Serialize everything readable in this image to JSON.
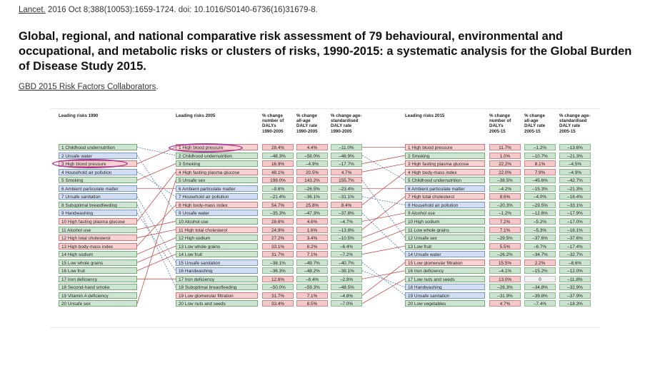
{
  "citation": {
    "journal": "Lancet.",
    "details": " 2016 Oct 8;388(10053):1659-1724. doi: 10.1016/S0140-6736(16)31679-8."
  },
  "article": {
    "title": "Global, regional, and national comparative risk assessment of 79 behavioural, environmental and occupational, and metabolic risks or clusters of risks, 1990-2015: a systematic analysis for the Global Burden of Disease Study 2015.",
    "authors": "GBD 2015 Risk Factors Collaborators",
    "authors_suffix": "."
  },
  "figure": {
    "headers": {
      "leading_1990": "Leading risks 1990",
      "leading_2005": "Leading risks 2005",
      "leading_2015": "Leading risks 2015",
      "h2005_dalys": "% change\nnumber of\nDALYs\n1990-2005",
      "h2005_allage": "% change\nall-age\nDALY rate\n1990-2005",
      "h2005_agestd": "% change age-\nstandardised\nDALY rate\n1990-2005",
      "h2015_dalys": "% change\nnumber of\nDALYs\n2005-15",
      "h2015_allage": "% change\nall-age\nDALY rate\n2005-15",
      "h2015_agestd": "% change age-\nstandardised\nDALY rate\n2005-15"
    },
    "risks_1990": [
      {
        "label": "1 Childhood undernutrition",
        "cat": "behavioural"
      },
      {
        "label": "2 Unsafe water",
        "cat": "environmental"
      },
      {
        "label": "3 High blood pressure",
        "cat": "metabolic"
      },
      {
        "label": "4 Household air pollution",
        "cat": "environmental"
      },
      {
        "label": "5 Smoking",
        "cat": "behavioural"
      },
      {
        "label": "6 Ambient particulate matter",
        "cat": "environmental"
      },
      {
        "label": "7 Unsafe sanitation",
        "cat": "environmental"
      },
      {
        "label": "8 Suboptimal breastfeeding",
        "cat": "behavioural"
      },
      {
        "label": "9 Handwashing",
        "cat": "environmental"
      },
      {
        "label": "10 High fasting plasma glucose",
        "cat": "metabolic"
      },
      {
        "label": "11 Alcohol use",
        "cat": "behavioural"
      },
      {
        "label": "12 High total cholesterol",
        "cat": "metabolic"
      },
      {
        "label": "13 High body-mass index",
        "cat": "metabolic"
      },
      {
        "label": "14 High sodium",
        "cat": "behavioural"
      },
      {
        "label": "15 Low whole grains",
        "cat": "behavioural"
      },
      {
        "label": "16 Low fruit",
        "cat": "behavioural"
      },
      {
        "label": "17 Iron deficiency",
        "cat": "behavioural"
      },
      {
        "label": "18 Second-hand smoke",
        "cat": "behavioural"
      },
      {
        "label": "19 Vitamin A deficiency",
        "cat": "behavioural"
      },
      {
        "label": "20 Unsafe sex",
        "cat": "behavioural"
      }
    ],
    "risks_2005": [
      {
        "label": "1 High blood pressure",
        "cat": "metabolic",
        "dalys": "28.4%",
        "allage": "4.4%",
        "agestd": "–11.0%"
      },
      {
        "label": "2 Childhood undernutrition",
        "cat": "behavioural",
        "dalys": "–48.3%",
        "allage": "–58.0%",
        "agestd": "–46.9%"
      },
      {
        "label": "3 Smoking",
        "cat": "behavioural",
        "dalys": "16.9%",
        "allage": "–4.9%",
        "agestd": "–17.7%"
      },
      {
        "label": "4 High fasting plasma glucose",
        "cat": "metabolic",
        "dalys": "48.1%",
        "allage": "20.5%",
        "agestd": "4.7%"
      },
      {
        "label": "5 Unsafe sex",
        "cat": "behavioural",
        "dalys": "199.0%",
        "allage": "143.2%",
        "agestd": "155.7%"
      },
      {
        "label": "6 Ambient particulate matter",
        "cat": "environmental",
        "dalys": "–9.6%",
        "allage": "–26.5%",
        "agestd": "–23.4%"
      },
      {
        "label": "7 Household air pollution",
        "cat": "environmental",
        "dalys": "–21.4%",
        "allage": "–36.1%",
        "agestd": "–31.1%"
      },
      {
        "label": "8 High body-mass index",
        "cat": "metabolic",
        "dalys": "54.7%",
        "allage": "25.8%",
        "agestd": "8.4%"
      },
      {
        "label": "9 Unsafe water",
        "cat": "environmental",
        "dalys": "–35.3%",
        "allage": "–47.3%",
        "agestd": "–37.8%"
      },
      {
        "label": "10 Alcohol use",
        "cat": "behavioural",
        "dalys": "28.6%",
        "allage": "4.6%",
        "agestd": "–4.7%"
      },
      {
        "label": "11 High total cholesterol",
        "cat": "metabolic",
        "dalys": "24.9%",
        "allage": "1.6%",
        "agestd": "–13.8%"
      },
      {
        "label": "12 High sodium",
        "cat": "behavioural",
        "dalys": "27.2%",
        "allage": "3.4%",
        "agestd": "–10.5%"
      },
      {
        "label": "13 Low whole grains",
        "cat": "behavioural",
        "dalys": "33.1%",
        "allage": "8.2%",
        "agestd": "–6.4%"
      },
      {
        "label": "14 Low fruit",
        "cat": "behavioural",
        "dalys": "31.7%",
        "allage": "7.1%",
        "agestd": "–7.2%"
      },
      {
        "label": "15 Unsafe sanitation",
        "cat": "environmental",
        "dalys": "–38.1%",
        "allage": "–49.7%",
        "agestd": "–40.7%"
      },
      {
        "label": "16 Handwashing",
        "cat": "environmental",
        "dalys": "–36.3%",
        "allage": "–48.2%",
        "agestd": "–38.1%"
      },
      {
        "label": "17 Iron deficiency",
        "cat": "behavioural",
        "dalys": "12.6%",
        "allage": "–8.4%",
        "agestd": "–2.8%"
      },
      {
        "label": "18 Suboptimal breastfeeding",
        "cat": "behavioural",
        "dalys": "–50.0%",
        "allage": "–59.3%",
        "agestd": "–48.5%"
      },
      {
        "label": "19 Low glomerular filtration",
        "cat": "metabolic",
        "dalys": "31.7%",
        "allage": "7.1%",
        "agestd": "–4.8%"
      },
      {
        "label": "20 Low nuts and seeds",
        "cat": "behavioural",
        "dalys": "33.4%",
        "allage": "8.5%",
        "agestd": "–7.0%"
      }
    ],
    "risks_2015": [
      {
        "label": "1 High blood pressure",
        "cat": "metabolic",
        "dalys": "11.7%",
        "allage": "–1.2%",
        "agestd": "–13.6%"
      },
      {
        "label": "2 Smoking",
        "cat": "behavioural",
        "dalys": "1.0%",
        "allage": "–10.7%",
        "agestd": "–21.3%"
      },
      {
        "label": "3 High fasting plasma glucose",
        "cat": "metabolic",
        "dalys": "22.2%",
        "allage": "8.1%",
        "agestd": "–4.5%"
      },
      {
        "label": "4 High body-mass index",
        "cat": "metabolic",
        "dalys": "22.0%",
        "allage": "7.9%",
        "agestd": "–4.9%"
      },
      {
        "label": "5 Childhood undernutrition",
        "cat": "behavioural",
        "dalys": "–38.5%",
        "allage": "–45.6%",
        "agestd": "–42.7%"
      },
      {
        "label": "6 Ambient particulate matter",
        "cat": "environmental",
        "dalys": "–4.2%",
        "allage": "–15.3%",
        "agestd": "–21.3%"
      },
      {
        "label": "7 High total cholesterol",
        "cat": "metabolic",
        "dalys": "8.6%",
        "allage": "–4.0%",
        "agestd": "–16.4%"
      },
      {
        "label": "8 Household air pollution",
        "cat": "environmental",
        "dalys": "–20.3%",
        "allage": "–29.5%",
        "agestd": "–33.1%"
      },
      {
        "label": "9 Alcohol use",
        "cat": "behavioural",
        "dalys": "–1.2%",
        "allage": "–12.6%",
        "agestd": "–17.9%"
      },
      {
        "label": "10 High sodium",
        "cat": "behavioural",
        "dalys": "7.2%",
        "allage": "–5.2%",
        "agestd": "–17.0%"
      },
      {
        "label": "11 Low whole grains",
        "cat": "behavioural",
        "dalys": "7.1%",
        "allage": "–5.3%",
        "agestd": "–16.1%"
      },
      {
        "label": "12 Unsafe sex",
        "cat": "behavioural",
        "dalys": "–29.5%",
        "allage": "–37.6%",
        "agestd": "–37.6%"
      },
      {
        "label": "13 Low fruit",
        "cat": "behavioural",
        "dalys": "5.5%",
        "allage": "–6.7%",
        "agestd": "–17.4%"
      },
      {
        "label": "14 Unsafe water",
        "cat": "environmental",
        "dalys": "–26.2%",
        "allage": "–34.7%",
        "agestd": "–32.7%"
      },
      {
        "label": "15 Low glomerular filtration",
        "cat": "metabolic",
        "dalys": "15.5%",
        "allage": "2.2%",
        "agestd": "–8.6%"
      },
      {
        "label": "16 Iron deficiency",
        "cat": "behavioural",
        "dalys": "–4.1%",
        "allage": "–15.2%",
        "agestd": "–12.0%"
      },
      {
        "label": "17 Low nuts and seeds",
        "cat": "behavioural",
        "dalys": "13.0%",
        "allage": "0",
        "agestd": "–11.8%"
      },
      {
        "label": "18 Handwashing",
        "cat": "environmental",
        "dalys": "–26.3%",
        "allage": "–34.8%",
        "agestd": "–32.9%"
      },
      {
        "label": "19 Unsafe sanitation",
        "cat": "environmental",
        "dalys": "–31.9%",
        "allage": "–39.8%",
        "agestd": "–37.9%"
      },
      {
        "label": "20 Low vegetables",
        "cat": "behavioural",
        "dalys": "4.7%",
        "allage": "–7.4%",
        "agestd": "–18.3%"
      }
    ],
    "links_1990_to_2005": [
      [
        1,
        2
      ],
      [
        2,
        9
      ],
      [
        3,
        1
      ],
      [
        4,
        7
      ],
      [
        5,
        3
      ],
      [
        6,
        6
      ],
      [
        7,
        15
      ],
      [
        8,
        18
      ],
      [
        9,
        16
      ],
      [
        10,
        4
      ],
      [
        11,
        10
      ],
      [
        12,
        11
      ],
      [
        13,
        8
      ],
      [
        14,
        12
      ],
      [
        15,
        13
      ],
      [
        16,
        14
      ],
      [
        17,
        17
      ],
      [
        20,
        5
      ]
    ],
    "links_2005_to_2015": [
      [
        1,
        1
      ],
      [
        2,
        5
      ],
      [
        3,
        2
      ],
      [
        4,
        3
      ],
      [
        5,
        12
      ],
      [
        6,
        6
      ],
      [
        7,
        8
      ],
      [
        8,
        4
      ],
      [
        9,
        14
      ],
      [
        10,
        9
      ],
      [
        11,
        7
      ],
      [
        12,
        10
      ],
      [
        13,
        11
      ],
      [
        14,
        13
      ],
      [
        15,
        19
      ],
      [
        16,
        18
      ],
      [
        17,
        16
      ],
      [
        19,
        15
      ],
      [
        20,
        17
      ]
    ],
    "colors": {
      "metabolic": "#f7d2d2",
      "behavioural": "#cfe5d3",
      "environmental": "#d4def2",
      "increase": "#f4c9c9",
      "decrease": "#cde3d1",
      "highlight": "#b03a9a",
      "rising_line": "#c0504d",
      "falling_line": "#4f7db3"
    }
  }
}
